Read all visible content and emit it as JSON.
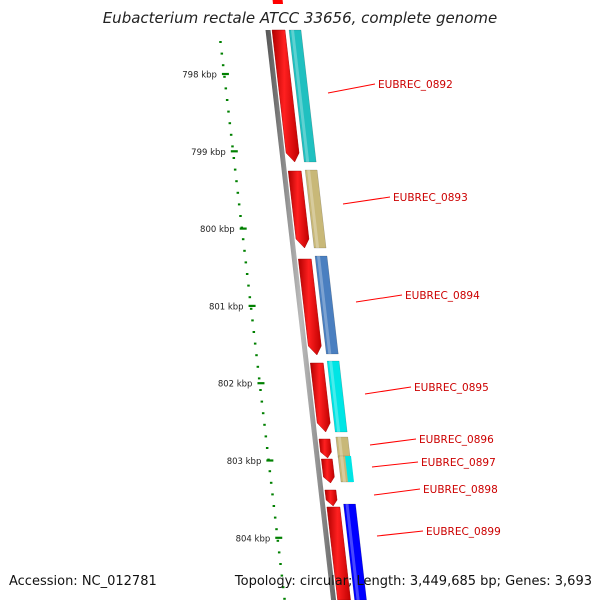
{
  "title": "Eubacterium rectale ATCC 33656, complete genome",
  "accession_text": "Accession: NC_012781",
  "topology_text": "Topology: circular; Length: 3,449,685 bp; Genes: 3,693",
  "scale_labels": [
    "798 kbp",
    "799 kbp",
    "800 kbp",
    "801 kbp",
    "802 kbp",
    "803 kbp",
    "804 kbp"
  ],
  "colors": {
    "cds_strand": "#ff0000",
    "backbone": "#808080",
    "ruler_ticks": "#008000",
    "label_text": "#cc0000",
    "cog_cyan": "#00e5e5",
    "cog_teal": "#20c0c0",
    "cog_khaki": "#c8b878",
    "cog_steelblue": "#4a7fc0",
    "cog_blue": "#0000ff"
  },
  "genes": [
    {
      "label": "EUBREC_0892",
      "cog_color": "#20c0c0"
    },
    {
      "label": "EUBREC_0893",
      "cog_color": "#c8b878"
    },
    {
      "label": "EUBREC_0894",
      "cog_color": "#4a7fc0"
    },
    {
      "label": "EUBREC_0895",
      "cog_color": "#00e5e5"
    },
    {
      "label": "EUBREC_0896",
      "cog_color": "#c8b878"
    },
    {
      "label": "EUBREC_0897",
      "cog_color": "#c8b878"
    },
    {
      "label": "EUBREC_0898",
      "cog_color": ""
    },
    {
      "label": "EUBREC_0899",
      "cog_color": "#0000ff"
    }
  ]
}
